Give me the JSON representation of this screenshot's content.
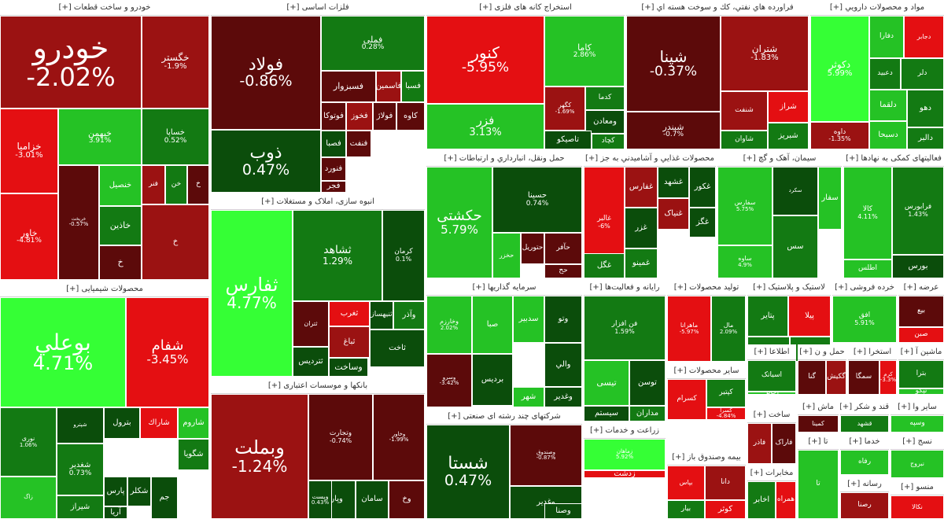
{
  "colors": {
    "dr": "#5c0a0a",
    "r": "#9b1212",
    "br": "#e40f12",
    "dg": "#0b4d0b",
    "g": "#137a13",
    "mg": "#25c225",
    "bg": "#35ff35"
  },
  "sectors": [
    {
      "id": "s1",
      "title": "خودرو و ساخت قطعات [+]",
      "tiles": [
        {
          "name": "خودرو",
          "pct": "-2.02%",
          "c": "r"
        },
        {
          "name": "خگستر",
          "pct": "-1.9%",
          "c": "r"
        },
        {
          "name": "خزامیا",
          "pct": "-3.01%",
          "c": "br"
        },
        {
          "name": "خبهمن",
          "pct": "3.91%",
          "c": "mg"
        },
        {
          "name": "خساپا",
          "pct": "0.52%",
          "c": "g"
        },
        {
          "name": "خاور",
          "pct": "-4.81%",
          "c": "br"
        },
        {
          "name": "خریخت",
          "pct": "-0.57%",
          "c": "dr"
        },
        {
          "name": "خنصیل",
          "pct": "",
          "c": "mg"
        },
        {
          "name": "خاذین",
          "pct": "",
          "c": "g"
        },
        {
          "name": "خ",
          "pct": "",
          "c": "dr"
        },
        {
          "name": "فنر",
          "pct": "",
          "c": "r"
        },
        {
          "name": "خن",
          "pct": "",
          "c": "g"
        },
        {
          "name": "خ",
          "pct": "",
          "c": "dr"
        },
        {
          "name": "خ",
          "pct": "",
          "c": "r"
        }
      ]
    },
    {
      "id": "s2",
      "title": "فلزات اساسی [+]",
      "tiles": [
        {
          "name": "فولاد",
          "pct": "-0.86%",
          "c": "dr"
        },
        {
          "name": "ذوب",
          "pct": "0.47%",
          "c": "dg"
        },
        {
          "name": "فملی",
          "pct": "0.28%",
          "c": "g"
        },
        {
          "name": "فسبزوار",
          "pct": "",
          "c": "dr"
        },
        {
          "name": "فاسمین",
          "pct": "",
          "c": "r"
        },
        {
          "name": "فسبا",
          "pct": "",
          "c": "g"
        },
        {
          "name": "فوتوکا",
          "pct": "",
          "c": "dr"
        },
        {
          "name": "فخوز",
          "pct": "",
          "c": "r"
        },
        {
          "name": "فولاژ",
          "pct": "",
          "c": "dr"
        },
        {
          "name": "کاوه",
          "pct": "",
          "c": "dr"
        },
        {
          "name": "فصبا",
          "pct": "",
          "c": "dg"
        },
        {
          "name": "فنفت",
          "pct": "",
          "c": "dr"
        },
        {
          "name": "فنورد",
          "pct": "",
          "c": "dr"
        },
        {
          "name": "فجر",
          "pct": "",
          "c": "dr"
        }
      ]
    },
    {
      "id": "s3",
      "title": "استخراج کانه های فلزی [+]",
      "tiles": [
        {
          "name": "کنور",
          "pct": "-5.95%",
          "c": "br"
        },
        {
          "name": "کاما",
          "pct": "2.86%",
          "c": "mg"
        },
        {
          "name": "فزر",
          "pct": "3.13%",
          "c": "mg"
        },
        {
          "name": "کگهر",
          "pct": "-1.69%",
          "c": "r"
        },
        {
          "name": "کدما",
          "pct": "",
          "c": "g"
        },
        {
          "name": "ومعادن",
          "pct": "",
          "c": "dg"
        },
        {
          "name": "تاصیکو",
          "pct": "",
          "c": "dg"
        },
        {
          "name": "کچاد",
          "pct": "",
          "c": "g"
        }
      ]
    },
    {
      "id": "s4",
      "title": "فراورده هاي نفتي، كك و سوخت هسته اي [+]",
      "tiles": [
        {
          "name": "شپنا",
          "pct": "-0.37%",
          "c": "dr"
        },
        {
          "name": "شتران",
          "pct": "-1.83%",
          "c": "r"
        },
        {
          "name": "شبندر",
          "pct": "-0.7%",
          "c": "dr"
        },
        {
          "name": "شنفت",
          "pct": "",
          "c": "r"
        },
        {
          "name": "شراز",
          "pct": "",
          "c": "br"
        },
        {
          "name": "شبریز",
          "pct": "",
          "c": "g"
        },
        {
          "name": "شاوان",
          "pct": "",
          "c": "g"
        }
      ]
    },
    {
      "id": "s5",
      "title": "مواد و محصولات دارويي [+]",
      "tiles": [
        {
          "name": "دکوثر",
          "pct": "5.99%",
          "c": "bg"
        },
        {
          "name": "دفارا",
          "pct": "",
          "c": "mg"
        },
        {
          "name": "دجابر",
          "pct": "",
          "c": "br"
        },
        {
          "name": "دعبید",
          "pct": "",
          "c": "g"
        },
        {
          "name": "دلر",
          "pct": "",
          "c": "g"
        },
        {
          "name": "دلقما",
          "pct": "",
          "c": "mg"
        },
        {
          "name": "دسبحا",
          "pct": "",
          "c": "mg"
        },
        {
          "name": "داوه",
          "pct": "-1.35%",
          "c": "r"
        },
        {
          "name": "دهو",
          "pct": "",
          "c": "g"
        },
        {
          "name": "دالبر",
          "pct": "",
          "c": "g"
        }
      ]
    },
    {
      "id": "s6",
      "title": "انبوه سازی، املاک و مستغلات [+]",
      "tiles": [
        {
          "name": "ثفارس",
          "pct": "4.77%",
          "c": "bg"
        },
        {
          "name": "ثشاهد",
          "pct": "1.29%",
          "c": "g"
        },
        {
          "name": "کرمان",
          "pct": "0.1%",
          "c": "dg"
        },
        {
          "name": "ثتران",
          "pct": "",
          "c": "dr"
        },
        {
          "name": "ثغرب",
          "pct": "",
          "c": "br"
        },
        {
          "name": "ثنیهساز",
          "pct": "",
          "c": "dg"
        },
        {
          "name": "ثالوند",
          "pct": "",
          "c": "dg"
        },
        {
          "name": "ثباغ",
          "pct": "",
          "c": "r"
        },
        {
          "name": "ثتردیس",
          "pct": "",
          "c": "dg"
        },
        {
          "name": "وساخت",
          "pct": "",
          "c": "dg"
        },
        {
          "name": "ثاخت",
          "pct": "",
          "c": "dg"
        },
        {
          "name": "وآذر",
          "pct": "",
          "c": "g"
        }
      ]
    },
    {
      "id": "s7",
      "title": "حمل ونقل، انبارداري و ارتباطات [+]",
      "tiles": [
        {
          "name": "حکشتی",
          "pct": "5.79%",
          "c": "mg"
        },
        {
          "name": "حسینا",
          "pct": "0.74%",
          "c": "dg"
        },
        {
          "name": "حآفر",
          "pct": "",
          "c": "dr"
        },
        {
          "name": "حتوریل",
          "pct": "",
          "c": "dr"
        },
        {
          "name": "حخزر",
          "pct": "",
          "c": "mg"
        },
        {
          "name": "حح",
          "pct": "",
          "c": "dr"
        }
      ]
    },
    {
      "id": "s8",
      "title": "محصولات غذايي و آشاميدني به جز [+]",
      "tiles": [
        {
          "name": "غالبر",
          "pct": "-6%",
          "c": "br"
        },
        {
          "name": "غفارس",
          "pct": "",
          "c": "r"
        },
        {
          "name": "غشهد",
          "pct": "",
          "c": "dg"
        },
        {
          "name": "غکور",
          "pct": "",
          "c": "dg"
        },
        {
          "name": "غگز",
          "pct": "",
          "c": "dg"
        },
        {
          "name": "غنیاک",
          "pct": "",
          "c": "r"
        },
        {
          "name": "غزر",
          "pct": "",
          "c": "dg"
        },
        {
          "name": "غمینو",
          "pct": "",
          "c": "g"
        },
        {
          "name": "غگل",
          "pct": "",
          "c": "g"
        }
      ]
    },
    {
      "id": "s9",
      "title": "سیمان، آهک و گچ [+]",
      "tiles": [
        {
          "name": "سفارس",
          "pct": "5.75%",
          "c": "mg"
        },
        {
          "name": "سکرد",
          "pct": "",
          "c": "dg"
        },
        {
          "name": "سفار",
          "pct": "",
          "c": "mg"
        },
        {
          "name": "ساوه",
          "pct": "4.9%",
          "c": "mg"
        },
        {
          "name": "سس",
          "pct": "",
          "c": "g"
        }
      ]
    },
    {
      "id": "s10",
      "title": "فعالیتهای کمکی به نهادها [+]",
      "tiles": [
        {
          "name": "کالا",
          "pct": "4.11%",
          "c": "mg"
        },
        {
          "name": "فرابورس",
          "pct": "1.43%",
          "c": "g"
        },
        {
          "name": "بورس",
          "pct": "",
          "c": "dg"
        },
        {
          "name": "اطلس",
          "pct": "",
          "c": "mg"
        }
      ]
    },
    {
      "id": "s11",
      "title": "محصولات شیمیایی [+]",
      "tiles": [
        {
          "name": "بوعلي",
          "pct": "4.71%",
          "c": "bg"
        },
        {
          "name": "شفام",
          "pct": "-3.45%",
          "c": "br"
        },
        {
          "name": "نوری",
          "pct": "1.06%",
          "c": "g"
        },
        {
          "name": "شپترو",
          "pct": "",
          "c": "dg"
        },
        {
          "name": "شاروم",
          "pct": "",
          "c": "mg"
        },
        {
          "name": "بترول",
          "pct": "",
          "c": "dg"
        },
        {
          "name": "شاراك",
          "pct": "",
          "c": "br"
        },
        {
          "name": "شگویا",
          "pct": "",
          "c": "g"
        },
        {
          "name": "زاگ",
          "pct": "",
          "c": "mg"
        },
        {
          "name": "شغدیر",
          "pct": "0.73%",
          "c": "g"
        },
        {
          "name": "شیراز",
          "pct": "",
          "c": "g"
        },
        {
          "name": "پارس",
          "pct": "",
          "c": "dg"
        },
        {
          "name": "شکلر",
          "pct": "",
          "c": "dg"
        },
        {
          "name": "آریا",
          "pct": "",
          "c": "dg"
        },
        {
          "name": "جم",
          "pct": "",
          "c": "dg"
        }
      ]
    },
    {
      "id": "s12",
      "title": "بانکها و موسسات اعتباری [+]",
      "tiles": [
        {
          "name": "وبملت",
          "pct": "-1.24%",
          "c": "r"
        },
        {
          "name": "وتجارت",
          "pct": "-0.74%",
          "c": "dr"
        },
        {
          "name": "وخاور",
          "pct": "-1.99%",
          "c": "dr"
        },
        {
          "name": "وپارس",
          "pct": "",
          "c": "dg"
        },
        {
          "name": "سامان",
          "pct": "",
          "c": "dg"
        },
        {
          "name": "وپست",
          "pct": "0.43%",
          "c": "dg"
        },
        {
          "name": "وخ",
          "pct": "",
          "c": "dr"
        }
      ]
    },
    {
      "id": "s13",
      "title": "سرمایه گذاریها [+]",
      "tiles": [
        {
          "name": "وخارزم",
          "pct": "2.02%",
          "c": "mg"
        },
        {
          "name": "صبا",
          "pct": "",
          "c": "mg"
        },
        {
          "name": "سدبیر",
          "pct": "",
          "c": "mg"
        },
        {
          "name": "وتو",
          "pct": "",
          "c": "dg"
        },
        {
          "name": "والي",
          "pct": "",
          "c": "dg"
        },
        {
          "name": "بردیس",
          "pct": "",
          "c": "dg"
        },
        {
          "name": "ومهان",
          "pct": "",
          "c": "mg"
        },
        {
          "name": "شهر",
          "pct": "",
          "c": "mg"
        },
        {
          "name": "وسرو",
          "pct": "-3.42%",
          "c": "dr"
        },
        {
          "name": "وغدير",
          "pct": "",
          "c": "dg"
        }
      ]
    },
    {
      "id": "s14",
      "title": "شرکتهای چند رشته ای صنعتی [+]",
      "tiles": [
        {
          "name": "شستا",
          "pct": "0.47%",
          "c": "dg"
        },
        {
          "name": "وصندوق",
          "pct": "-0.87%",
          "c": "dr"
        },
        {
          "name": "وغدیر",
          "pct": "",
          "c": "dg"
        },
        {
          "name": "وصنا",
          "pct": "",
          "c": "dg"
        }
      ]
    },
    {
      "id": "s15",
      "title": "رایانه و فعالیت‌ها [+]",
      "tiles": [
        {
          "name": "فن افزار",
          "pct": "1.59%",
          "c": "g"
        },
        {
          "name": "توسن",
          "pct": "",
          "c": "dg"
        },
        {
          "name": "تیسی",
          "pct": "",
          "c": "mg"
        },
        {
          "name": "سیستم",
          "pct": "",
          "c": "dg"
        },
        {
          "name": "مداران",
          "pct": "",
          "c": "g"
        }
      ]
    },
    {
      "id": "s16",
      "title": "تولید محصولات [+]",
      "tiles": [
        {
          "name": "ماهرانا",
          "pct": "-5.97%",
          "c": "br"
        },
        {
          "name": "مال",
          "pct": "2.09%",
          "c": "g"
        }
      ]
    },
    {
      "id": "s17",
      "title": "لاستیک و پلاستیک [+]",
      "tiles": [
        {
          "name": "پتایر",
          "pct": "",
          "c": "g"
        },
        {
          "name": "پیلا",
          "pct": "",
          "c": "br"
        },
        {
          "name": "پکویر",
          "pct": "",
          "c": "g"
        },
        {
          "name": "پکرمان",
          "pct": "",
          "c": "g"
        }
      ]
    },
    {
      "id": "s18",
      "title": "خرده فروشی [+]",
      "tiles": [
        {
          "name": "افق",
          "pct": "5.91%",
          "c": "mg"
        }
      ]
    },
    {
      "id": "s19",
      "title": "عرضه [+]",
      "tiles": [
        {
          "name": "بیع",
          "pct": "",
          "c": "dr"
        },
        {
          "name": "صبن",
          "pct": "",
          "c": "br"
        }
      ]
    },
    {
      "id": "s20",
      "title": "سایر محصولات [+]",
      "tiles": [
        {
          "name": "کسرام",
          "pct": "",
          "c": "br"
        },
        {
          "name": "کپتیر",
          "pct": "",
          "c": "g"
        },
        {
          "name": "کسرا",
          "pct": "-4.84%",
          "c": "br"
        }
      ]
    },
    {
      "id": "s21",
      "title": "اطلاعا [+]",
      "tiles": [
        {
          "name": "اسیاتک",
          "pct": "",
          "c": "g"
        },
        {
          "name": "اخابر",
          "pct": "",
          "c": "mg"
        }
      ]
    },
    {
      "id": "s22",
      "title": "حمل و ن [+]",
      "tiles": [
        {
          "name": "گنا",
          "pct": "",
          "c": "dr"
        },
        {
          "name": "گکیش",
          "pct": "",
          "c": "r"
        }
      ]
    },
    {
      "id": "s23",
      "title": "استخرا [+]",
      "tiles": [
        {
          "name": "سمگا",
          "pct": "",
          "c": "dr"
        },
        {
          "name": "کرم",
          "pct": "-3.3%",
          "c": "br"
        }
      ]
    },
    {
      "id": "s24",
      "title": "ماشین آ [+]",
      "tiles": [
        {
          "name": "بترا",
          "pct": "",
          "c": "g"
        },
        {
          "name": "تپکو",
          "pct": "",
          "c": "mg"
        }
      ]
    },
    {
      "id": "s25",
      "title": "زراعت و خدمات [+]",
      "tiles": [
        {
          "name": "زماهان",
          "pct": "5.92%",
          "c": "bg"
        },
        {
          "name": "زدشت",
          "pct": "",
          "c": "br"
        },
        {
          "name": "زکشت",
          "pct": "",
          "c": "g"
        }
      ]
    },
    {
      "id": "s26",
      "title": "بیمه وصندوق باز [+]",
      "tiles": [
        {
          "name": "بپاس",
          "pct": "",
          "c": "br"
        },
        {
          "name": "دانا",
          "pct": "",
          "c": "r"
        },
        {
          "name": "بیار",
          "pct": "",
          "c": "g"
        },
        {
          "name": "کوثر",
          "pct": "",
          "c": "br"
        }
      ]
    },
    {
      "id": "s27",
      "title": "ساخت [+]",
      "tiles": [
        {
          "name": "فاذر",
          "pct": "",
          "c": "r"
        },
        {
          "name": "فاراک",
          "pct": "",
          "c": "dr"
        }
      ]
    },
    {
      "id": "s28",
      "title": "مخابرات [+]",
      "tiles": [
        {
          "name": "اخابر",
          "pct": "",
          "c": "g"
        },
        {
          "name": "همراه",
          "pct": "",
          "c": "br"
        }
      ]
    },
    {
      "id": "s29",
      "title": "ماش [+]",
      "tiles": [
        {
          "name": "کمینا",
          "pct": "",
          "c": "dr"
        }
      ]
    },
    {
      "id": "s30",
      "title": "قند و شکر [+]",
      "tiles": [
        {
          "name": "قشهد",
          "pct": "",
          "c": "g"
        }
      ]
    },
    {
      "id": "s31",
      "title": "سایر وا [+]",
      "tiles": [
        {
          "name": "وسپه",
          "pct": "",
          "c": "mg"
        }
      ]
    },
    {
      "id": "s32",
      "title": "خدما [+]",
      "tiles": [
        {
          "name": "رفاه",
          "pct": "",
          "c": "mg"
        }
      ]
    },
    {
      "id": "s33",
      "title": "رسانه [+]",
      "tiles": [
        {
          "name": "رصنا",
          "pct": "",
          "c": "r"
        }
      ]
    },
    {
      "id": "s34",
      "title": "نسج [+]",
      "tiles": [
        {
          "name": "نبروج",
          "pct": "",
          "c": "mg"
        }
      ]
    },
    {
      "id": "s35",
      "title": "منسو [+]",
      "tiles": [
        {
          "name": "نکالا",
          "pct": "",
          "c": "br"
        }
      ]
    },
    {
      "id": "s36",
      "title": "تا [+]",
      "tiles": [
        {
          "name": "تا",
          "pct": "",
          "c": "mg"
        }
      ]
    }
  ]
}
